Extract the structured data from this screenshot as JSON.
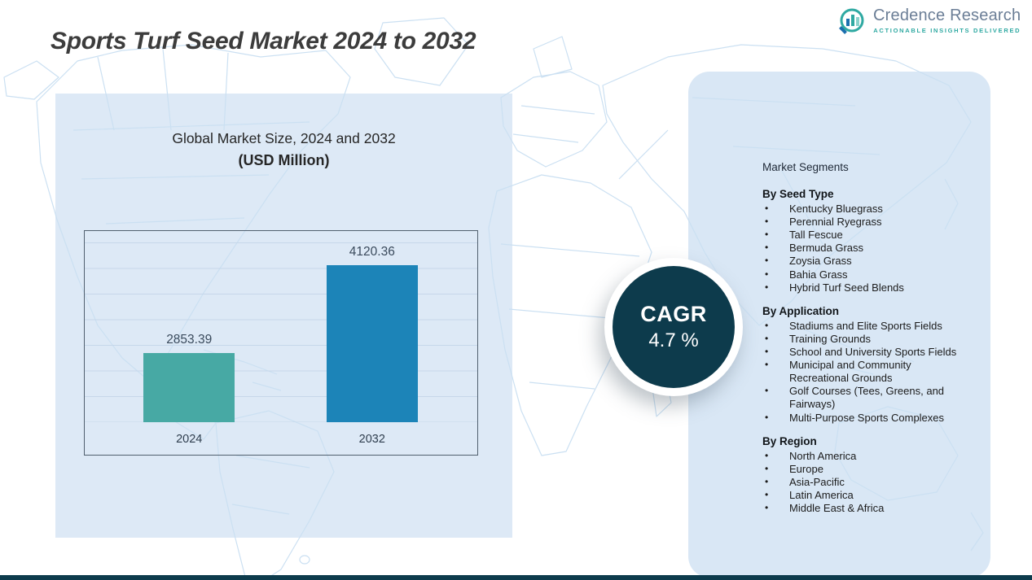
{
  "page": {
    "title": "Sports Turf Seed Market 2024 to 2032"
  },
  "logo": {
    "name": "Credence Research",
    "tagline": "Actionable Insights Delivered"
  },
  "market_size_panel": {
    "heading_line1": "Global Market Size, 2024 and 2032",
    "heading_line2": "(USD Million)"
  },
  "chart_data": {
    "type": "bar",
    "title": "Global Market Size, 2024 and 2032",
    "subtitle": "(USD Million)",
    "categories": [
      "2024",
      "2032"
    ],
    "values": [
      2853.39,
      4120.36
    ],
    "value_labels": [
      "2853.39",
      "4120.36"
    ],
    "bar_colors": [
      "#47a9a4",
      "#1c84b8"
    ],
    "ylim": [
      1850,
      4450
    ],
    "grid": true,
    "legend": false,
    "xlabel": "",
    "ylabel": ""
  },
  "cagr": {
    "label": "CAGR",
    "value": "4.7 %"
  },
  "segments": {
    "heading": "Market Segments",
    "groups": [
      {
        "title": "By Seed Type",
        "items": [
          "Kentucky Bluegrass",
          "Perennial Ryegrass",
          "Tall Fescue",
          "Bermuda Grass",
          "Zoysia Grass",
          "Bahia Grass",
          "Hybrid Turf Seed Blends"
        ]
      },
      {
        "title": "By  Application",
        "items": [
          "Stadiums and Elite Sports Fields",
          "Training Grounds",
          "School and University Sports Fields",
          "Municipal and Community Recreational Grounds",
          "Golf Courses (Tees, Greens, and Fairways)",
          "Multi-Purpose Sports Complexes"
        ]
      },
      {
        "title": "By Region",
        "items": [
          "North America",
          "Europe",
          "Asia-Pacific",
          "Latin America",
          "Middle East & Africa"
        ]
      }
    ]
  },
  "colors": {
    "accent_teal": "#47a9a4",
    "accent_blue": "#1c84b8",
    "dark_circle": "#0d3b4c",
    "panel_bg": "#dde9f6",
    "map_line": "#cbe0f2",
    "footer_bar": "#0d3b4c"
  }
}
